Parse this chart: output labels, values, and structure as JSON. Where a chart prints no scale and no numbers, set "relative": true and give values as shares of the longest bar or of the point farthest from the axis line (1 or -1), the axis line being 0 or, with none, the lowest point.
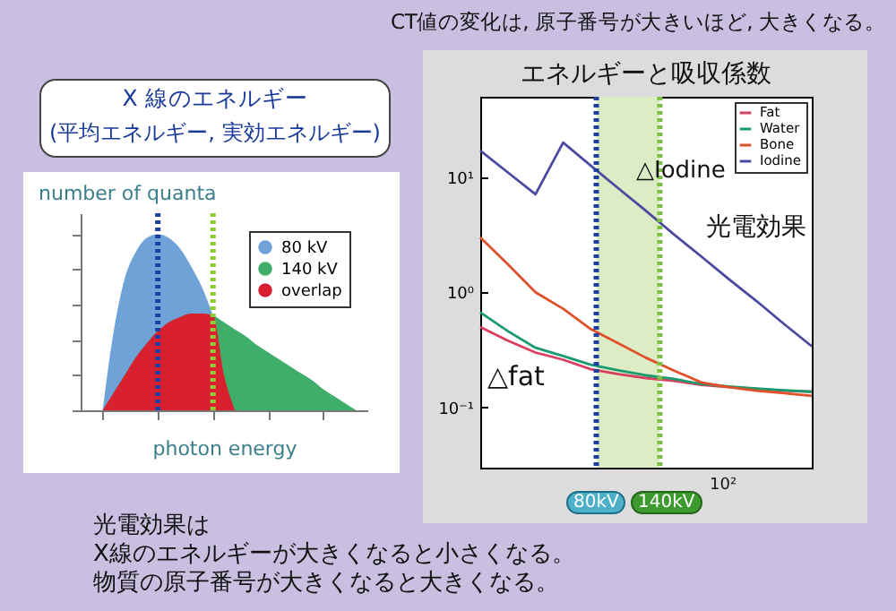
{
  "chart_data": [
    {
      "type": "area",
      "relative": true,
      "ylabel": "number of quanta",
      "xlabel": "photon energy",
      "legend": "top right",
      "categories": [
        null,
        null,
        null,
        null,
        null,
        null,
        null,
        null,
        null,
        null,
        null,
        null,
        null,
        null,
        null,
        null,
        null,
        null,
        null,
        null,
        null,
        null,
        null,
        null
      ],
      "series": [
        {
          "name": "80 kV",
          "color": "#6fa3d8",
          "values": [
            0,
            0.45,
            0.75,
            0.9,
            0.98,
            1,
            0.98,
            0.92,
            0.82,
            0.7,
            0.54,
            null,
            null,
            null,
            null,
            null,
            null,
            null,
            null,
            null,
            null,
            null,
            null,
            null
          ]
        },
        {
          "name": "140 kV",
          "color": "#3fae6a",
          "values": [
            0,
            0.1,
            0.2,
            0.3,
            0.38,
            0.45,
            0.5,
            0.53,
            0.55,
            0.55,
            0.54,
            0.5,
            0.46,
            0.42,
            0.37,
            0.33,
            0.29,
            0.25,
            0.21,
            0.17,
            0.12,
            0.08,
            0.04,
            0
          ]
        },
        {
          "name": "overlap",
          "color": "#d8202f",
          "values": [
            0,
            0.1,
            0.2,
            0.3,
            0.38,
            0.45,
            0.5,
            0.53,
            0.55,
            0.55,
            0.54,
            0.2,
            0,
            null,
            null,
            null,
            null,
            null,
            null,
            null,
            null,
            null,
            null,
            null
          ]
        }
      ],
      "annotations": [
        "X 線のエネルギー",
        "(平均エネルギー, 実効エネルギー)",
        "光電効果は",
        "X線のエネルギーが大きくなると小さくなる。",
        "物質の原子番号が大きくなると大きくなる。"
      ]
    },
    {
      "type": "line",
      "title": "エネルギーと吸収係数",
      "log": "y",
      "marker": "none",
      "legend": "top right",
      "categories": [
        null,
        null,
        null,
        null,
        null,
        null,
        null,
        null,
        null,
        null,
        null,
        null,
        null
      ],
      "ylim": [
        0.03,
        50
      ],
      "yticks": [
        {
          "value": 0.1,
          "label": "10⁻¹"
        },
        {
          "value": 1,
          "label": "10⁰"
        },
        {
          "value": 10,
          "label": "10¹"
        }
      ],
      "series": [
        {
          "name": "Fat",
          "color": "#d9405e",
          "values": [
            0.5,
            0.38,
            0.3,
            0.26,
            0.215,
            0.195,
            0.18,
            0.17,
            0.157,
            0.15,
            0.145,
            0.14,
            0.137
          ]
        },
        {
          "name": "Water",
          "color": "#1a9a6e",
          "values": [
            0.67,
            0.46,
            0.33,
            0.28,
            0.235,
            0.21,
            0.19,
            0.177,
            0.16,
            0.152,
            0.146,
            0.141,
            0.137
          ]
        },
        {
          "name": "Bone",
          "color": "#e0502a",
          "values": [
            3.0,
            1.75,
            1.0,
            0.72,
            0.48,
            0.36,
            0.27,
            0.21,
            0.165,
            0.15,
            0.14,
            0.133,
            0.126
          ]
        },
        {
          "name": "Iodine",
          "color": "#4a4aa0",
          "values": [
            17,
            11,
            7.1,
            20,
            12.6,
            8.0,
            5.1,
            3.2,
            2.05,
            1.3,
            0.84,
            0.53,
            0.34
          ]
        }
      ],
      "annotations": [
        "CT値の変化は, 原子番号が大きいほど, 大きくなる。",
        "△Iodine",
        "光電効果",
        "△fat",
        "10²",
        "80kV",
        "140kV"
      ]
    }
  ]
}
